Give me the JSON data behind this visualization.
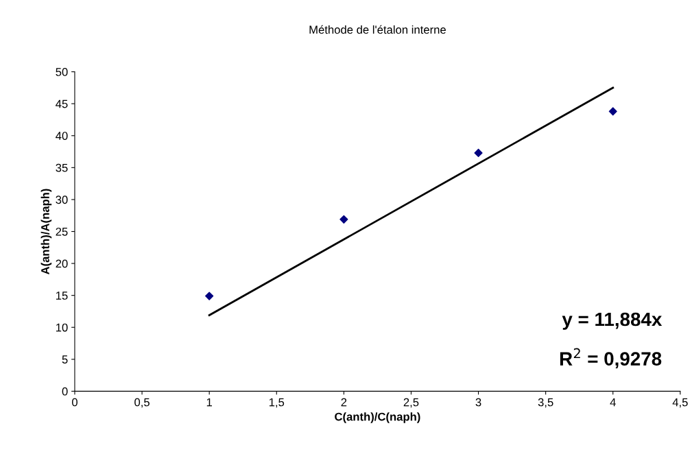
{
  "chart_data": {
    "type": "scatter",
    "title": "Méthode de l'étalon interne",
    "xlabel": "C(anth)/C(naph)",
    "ylabel": "A(anth)/A(naph)",
    "series": [
      {
        "color": "#000080",
        "marker": "diamond",
        "x": [
          1,
          2,
          3,
          4
        ],
        "values": [
          14.9,
          26.9,
          37.3,
          43.8
        ]
      },
      {
        "type": "line",
        "color": "#000000",
        "marker": "none",
        "line_style": "solid",
        "x": [
          1,
          4
        ],
        "values": [
          11.9,
          47.5
        ]
      }
    ],
    "xlim": [
      0,
      4.5
    ],
    "ylim": [
      0,
      50
    ],
    "xticks": [
      0,
      {
        "value": 0.5,
        "label": "0,5"
      },
      1,
      {
        "value": 1.5,
        "label": "1,5"
      },
      2,
      {
        "value": 2.5,
        "label": "2,5"
      },
      3,
      {
        "value": 3.5,
        "label": "3,5"
      },
      4,
      {
        "value": 4.5,
        "label": "4,5"
      }
    ],
    "yticks": [
      0,
      5,
      10,
      15,
      20,
      25,
      30,
      35,
      40,
      45,
      50
    ],
    "annotations": [
      "y = 11,884x",
      "R$^{2}$ = 0,9278"
    ],
    "grid": false,
    "legend": false
  }
}
